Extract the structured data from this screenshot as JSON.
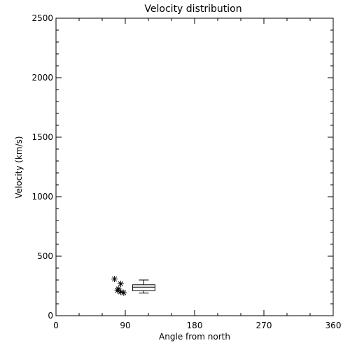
{
  "chart_data": {
    "type": "scatter",
    "title": "Velocity distribution",
    "xlabel": "Angle from north",
    "ylabel": "Velocity (km/s)",
    "xlim": [
      0,
      360
    ],
    "ylim": [
      0,
      2500
    ],
    "xticks": [
      0,
      90,
      180,
      270,
      360
    ],
    "yticks": [
      0,
      500,
      1000,
      1500,
      2000,
      2500
    ],
    "grid": false,
    "points": [
      {
        "x": 76,
        "y": 308
      },
      {
        "x": 81,
        "y": 225
      },
      {
        "x": 80,
        "y": 212
      },
      {
        "x": 84,
        "y": 268
      },
      {
        "x": 84,
        "y": 200
      },
      {
        "x": 88,
        "y": 193
      }
    ],
    "boxplot": {
      "x": 114,
      "min": 190,
      "q1": 210,
      "median": 240,
      "q3": 260,
      "max": 300
    },
    "colors": {
      "axes": "#000000",
      "background": "#ffffff"
    }
  }
}
